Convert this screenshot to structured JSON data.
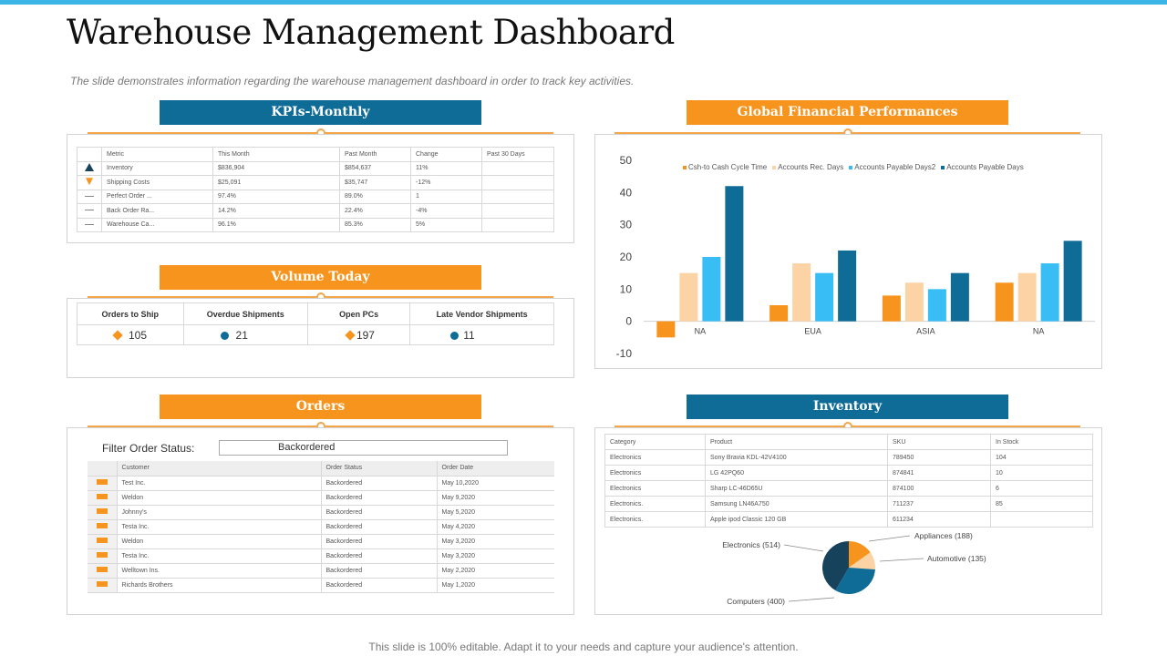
{
  "title": "Warehouse Management Dashboard",
  "subtitle": "The slide demonstrates information regarding the warehouse  management dashboard in order  to track key activities.",
  "footer": "This slide is 100% editable. Adapt it to your needs and capture your audience's attention.",
  "colors": {
    "blue": "#0e6c96",
    "orange": "#f7941d",
    "topbar": "#3bb4e6"
  },
  "kpi": {
    "heading": "KPIs-Monthly",
    "columns": [
      "Metric",
      "This Month",
      "Past Month",
      "Change",
      "Past 30 Days"
    ],
    "rows": [
      {
        "icon": "warning-triangle-icon",
        "cells": [
          "Inventory",
          "$836,904",
          "$854,637",
          "11%",
          ""
        ]
      },
      {
        "icon": "down-arrow-icon",
        "cells": [
          "Shipping Costs",
          "$25,091",
          "$35,747",
          "-12%",
          ""
        ]
      },
      {
        "icon": "dash-icon",
        "cells": [
          "Perfect Order ...",
          "97.4%",
          "89.0%",
          "1",
          ""
        ]
      },
      {
        "icon": "dash-icon",
        "cells": [
          "Back Order Ra...",
          "14.2%",
          "22.4%",
          "-4%",
          ""
        ]
      },
      {
        "icon": "dash-icon",
        "cells": [
          "Warehouse Ca...",
          "96.1%",
          "85.3%",
          "5%",
          ""
        ]
      }
    ]
  },
  "volume": {
    "heading": "Volume Today",
    "columns": [
      "Orders to Ship",
      "Overdue Shipments",
      "Open PCs",
      "Late Vendor Shipments"
    ],
    "values": [
      "105",
      "21",
      "197",
      "11"
    ]
  },
  "orders": {
    "heading": "Orders",
    "filter_label": "Filter Order Status:",
    "filter_value": "Backordered",
    "columns": [
      "Customer",
      "Order Status",
      "Order Date"
    ],
    "rows": [
      [
        "Test Inc.",
        "Backordered",
        "May 10,2020"
      ],
      [
        "Weldon",
        "Backordered",
        "May 9,2020"
      ],
      [
        "Johnny's",
        "Backordered",
        "May 5,2020"
      ],
      [
        "Testa Inc.",
        "Backordered",
        "May 4,2020"
      ],
      [
        "Weldon",
        "Backordered",
        "May 3,2020"
      ],
      [
        "Testa Inc.",
        "Backordered",
        "May 3,2020"
      ],
      [
        "Welltown Ins.",
        "Backordered",
        "May 2,2020"
      ],
      [
        "Richards Brothers",
        "Backordered",
        "May 1,2020"
      ]
    ]
  },
  "inventory": {
    "heading": "Inventory",
    "columns": [
      "Category",
      "Product",
      "SKU",
      "In Stock"
    ],
    "rows": [
      [
        "Electronics",
        "Sony Bravia KDL-42V4100",
        "789450",
        "104"
      ],
      [
        "Electronics",
        "LG 42PQ60",
        "874841",
        "10"
      ],
      [
        "Electronics",
        "Sharp LC-46D65U",
        "874100",
        "6"
      ],
      [
        "Electronics.",
        "Samsung LN46A750",
        "711237",
        "85"
      ],
      [
        "Electronics.",
        "Apple ipod Classic 120 GB",
        "611234",
        ""
      ]
    ]
  },
  "finance": {
    "heading": "Global Financial Performances"
  },
  "chart_data": [
    {
      "type": "bar",
      "categories": [
        "NA",
        "EUA",
        "ASIA",
        "NA"
      ],
      "series": [
        {
          "name": "Csh-to Cash Cycle Time",
          "color": "#f7941d",
          "values": [
            -5,
            5,
            8,
            12
          ]
        },
        {
          "name": "Accounts Rec. Days",
          "color": "#fcd3a4",
          "values": [
            15,
            18,
            12,
            15
          ]
        },
        {
          "name": "Accounts Payable Days2",
          "color": "#39bdf5",
          "values": [
            20,
            15,
            10,
            18
          ]
        },
        {
          "name": "Accounts Payable Days",
          "color": "#0e6c96",
          "values": [
            42,
            22,
            15,
            25
          ]
        }
      ],
      "ylim": [
        -10,
        50
      ],
      "yticks": [
        "50",
        "40",
        "30",
        "20",
        "10",
        "0",
        "-10"
      ],
      "legend": "top"
    },
    {
      "type": "pie",
      "slices": [
        {
          "label": "Appliances (188)",
          "value": 188,
          "color": "#f7941d"
        },
        {
          "label": "Automotive (135)",
          "value": 135,
          "color": "#fcd3a4"
        },
        {
          "label": "Computers (400)",
          "value": 400,
          "color": "#0e6c96"
        },
        {
          "label": "Electronics (514)",
          "value": 514,
          "color": "#16425b"
        }
      ]
    }
  ]
}
